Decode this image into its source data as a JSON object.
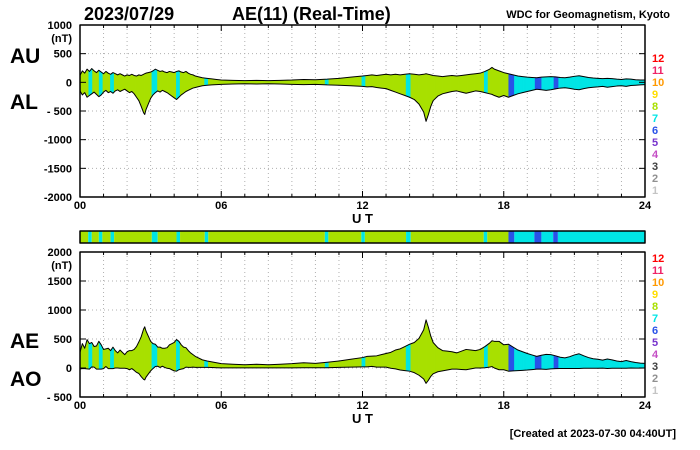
{
  "header": {
    "date": "2023/07/29",
    "title": "AE(11) (Real-Time)",
    "credit": "WDC for Geomagnetism, Kyoto"
  },
  "footer": {
    "created": "[Created at 2023-07-30 04:40UT]"
  },
  "panels": {
    "top": {
      "left_labels": [
        "AU",
        "AL"
      ],
      "xlabel": "U T",
      "unit": "(nT)"
    },
    "bottom": {
      "left_labels": [
        "AE",
        "AO"
      ],
      "xlabel": "U T",
      "unit": "(nT)"
    }
  },
  "legend": {
    "station_numbers": [
      12,
      11,
      10,
      9,
      8,
      7,
      6,
      5,
      4,
      3,
      2,
      1
    ],
    "colors": {
      "12": "#ff0000",
      "11": "#ee2266",
      "10": "#ff9900",
      "9": "#ffdd00",
      "8": "#a8e000",
      "7": "#00e5e5",
      "6": "#2952e8",
      "5": "#7733cc",
      "4": "#c44ec4",
      "3": "#404040",
      "2": "#909090",
      "1": "#c4c4c4"
    }
  },
  "chart_data": [
    {
      "type": "area",
      "name": "AU-AL panel",
      "xlabel": "U T",
      "xlim": [
        0,
        24
      ],
      "xticks": [
        0,
        6,
        12,
        18,
        24
      ],
      "xtick_labels": [
        "00",
        "06",
        "12",
        "18",
        "24"
      ],
      "ylim": [
        -2000,
        1000
      ],
      "yticks": [
        1000,
        500,
        0,
        -500,
        -1000,
        -1500,
        -2000
      ],
      "ytick_labels": [
        "1000",
        "500",
        "0",
        "- 500",
        "-1000",
        "-1500",
        "-2000"
      ],
      "unit": "(nT)",
      "x": [
        0.0,
        0.1,
        0.2,
        0.3,
        0.4,
        0.5,
        0.6,
        0.7,
        0.8,
        0.9,
        1.0,
        1.1,
        1.2,
        1.3,
        1.4,
        1.5,
        1.6,
        1.7,
        1.8,
        1.9,
        2.0,
        2.1,
        2.2,
        2.3,
        2.4,
        2.5,
        2.6,
        2.7,
        2.75,
        2.8,
        2.9,
        3.0,
        3.1,
        3.2,
        3.3,
        3.4,
        3.5,
        3.6,
        3.7,
        3.8,
        3.9,
        4.0,
        4.1,
        4.2,
        4.3,
        4.4,
        4.5,
        4.6,
        4.7,
        4.8,
        4.9,
        5.0,
        5.2,
        5.4,
        5.6,
        5.8,
        6.0,
        6.5,
        7.0,
        7.5,
        8.0,
        8.5,
        9.0,
        9.5,
        10.0,
        10.5,
        11.0,
        11.5,
        12.0,
        12.2,
        12.4,
        12.6,
        12.8,
        13.0,
        13.2,
        13.4,
        13.6,
        13.8,
        14.0,
        14.2,
        14.4,
        14.6,
        14.7,
        14.8,
        14.9,
        15.0,
        15.2,
        15.4,
        15.6,
        15.8,
        16.0,
        16.2,
        16.4,
        16.6,
        16.8,
        17.0,
        17.2,
        17.4,
        17.5,
        17.6,
        17.8,
        18.0,
        18.2,
        18.4,
        18.6,
        18.8,
        19.0,
        19.2,
        19.4,
        19.6,
        19.8,
        20.0,
        20.2,
        20.4,
        20.6,
        20.8,
        21.0,
        21.2,
        21.4,
        21.6,
        21.8,
        22.0,
        22.2,
        22.4,
        22.6,
        22.8,
        23.0,
        23.2,
        23.4,
        23.6,
        23.8,
        24.0
      ],
      "series": [
        {
          "name": "AU",
          "values": [
            120,
            200,
            160,
            230,
            190,
            240,
            200,
            170,
            210,
            180,
            150,
            190,
            160,
            140,
            170,
            150,
            130,
            150,
            130,
            110,
            130,
            120,
            140,
            120,
            110,
            130,
            120,
            140,
            150,
            160,
            170,
            180,
            200,
            230,
            210,
            190,
            200,
            180,
            170,
            190,
            180,
            170,
            190,
            200,
            180,
            170,
            190,
            160,
            140,
            130,
            110,
            100,
            80,
            70,
            60,
            50,
            40,
            35,
            30,
            35,
            30,
            35,
            40,
            50,
            45,
            55,
            70,
            90,
            110,
            120,
            130,
            120,
            130,
            140,
            130,
            140,
            130,
            140,
            150,
            140,
            130,
            140,
            150,
            140,
            130,
            120,
            110,
            100,
            110,
            120,
            110,
            120,
            130,
            140,
            150,
            160,
            190,
            230,
            260,
            230,
            200,
            170,
            150,
            130,
            110,
            100,
            90,
            85,
            80,
            90,
            95,
            100,
            95,
            85,
            80,
            90,
            105,
            115,
            100,
            85,
            75,
            70,
            65,
            70,
            65,
            55,
            50,
            60,
            55,
            45,
            40,
            40
          ]
        },
        {
          "name": "AL",
          "values": [
            -150,
            -220,
            -180,
            -260,
            -230,
            -200,
            -170,
            -210,
            -250,
            -220,
            -170,
            -140,
            -180,
            -160,
            -190,
            -150,
            -130,
            -160,
            -140,
            -120,
            -150,
            -180,
            -160,
            -200,
            -260,
            -320,
            -420,
            -530,
            -560,
            -480,
            -380,
            -280,
            -220,
            -180,
            -150,
            -170,
            -140,
            -160,
            -180,
            -210,
            -240,
            -270,
            -300,
            -260,
            -220,
            -190,
            -160,
            -140,
            -120,
            -100,
            -90,
            -80,
            -60,
            -50,
            -45,
            -40,
            -35,
            -30,
            -25,
            -30,
            -25,
            -30,
            -35,
            -40,
            -35,
            -45,
            -50,
            -60,
            -70,
            -80,
            -75,
            -90,
            -100,
            -110,
            -140,
            -170,
            -200,
            -230,
            -260,
            -300,
            -380,
            -520,
            -680,
            -560,
            -420,
            -320,
            -240,
            -200,
            -180,
            -160,
            -150,
            -170,
            -190,
            -170,
            -150,
            -160,
            -180,
            -200,
            -210,
            -230,
            -260,
            -230,
            -260,
            -230,
            -200,
            -180,
            -160,
            -140,
            -120,
            -130,
            -140,
            -130,
            -115,
            -100,
            -95,
            -105,
            -120,
            -130,
            -110,
            -95,
            -85,
            -80,
            -70,
            -85,
            -75,
            -65,
            -60,
            -70,
            -55,
            -50,
            -45,
            -40
          ]
        }
      ]
    },
    {
      "type": "area",
      "name": "AE-AO panel",
      "x_shared_with_first": true,
      "xlabel": "U T",
      "xlim": [
        0,
        24
      ],
      "xticks": [
        0,
        6,
        12,
        18,
        24
      ],
      "xtick_labels": [
        "00",
        "06",
        "12",
        "18",
        "24"
      ],
      "ylim": [
        -500,
        2000
      ],
      "yticks": [
        2000,
        1500,
        1000,
        500,
        0,
        -500
      ],
      "ytick_labels": [
        "2000",
        "1500",
        "1000",
        "500",
        "0",
        "- 500"
      ],
      "unit": "(nT)",
      "series": [
        {
          "name": "AE",
          "values": [
            270,
            420,
            340,
            490,
            420,
            440,
            370,
            380,
            460,
            400,
            320,
            330,
            340,
            300,
            360,
            300,
            260,
            310,
            270,
            230,
            280,
            300,
            300,
            320,
            370,
            450,
            540,
            670,
            710,
            640,
            550,
            460,
            420,
            410,
            360,
            360,
            340,
            340,
            350,
            400,
            420,
            440,
            490,
            460,
            400,
            360,
            350,
            300,
            260,
            230,
            200,
            180,
            140,
            120,
            105,
            90,
            75,
            65,
            55,
            65,
            55,
            65,
            75,
            90,
            80,
            100,
            120,
            150,
            180,
            200,
            205,
            210,
            230,
            250,
            270,
            310,
            330,
            370,
            410,
            440,
            510,
            660,
            830,
            700,
            550,
            440,
            350,
            300,
            290,
            280,
            260,
            290,
            320,
            310,
            300,
            320,
            370,
            430,
            470,
            460,
            460,
            400,
            410,
            360,
            310,
            280,
            250,
            225,
            200,
            220,
            235,
            230,
            210,
            185,
            175,
            195,
            225,
            245,
            210,
            180,
            160,
            150,
            135,
            155,
            140,
            120,
            110,
            130,
            110,
            95,
            85,
            80
          ]
        },
        {
          "name": "AO",
          "values": [
            -15,
            -10,
            -10,
            -15,
            -20,
            20,
            15,
            -20,
            -20,
            -20,
            -10,
            25,
            -10,
            -10,
            -10,
            0,
            0,
            -5,
            -5,
            -5,
            -10,
            -30,
            -10,
            -40,
            -75,
            -95,
            -150,
            -195,
            -205,
            -160,
            -105,
            -50,
            -10,
            25,
            30,
            10,
            30,
            10,
            -5,
            -10,
            -30,
            -50,
            -55,
            -30,
            -20,
            -10,
            15,
            10,
            10,
            15,
            10,
            10,
            10,
            10,
            8,
            5,
            3,
            3,
            3,
            3,
            3,
            3,
            3,
            5,
            5,
            5,
            10,
            15,
            20,
            20,
            28,
            15,
            15,
            15,
            -5,
            -15,
            -35,
            -45,
            -55,
            -80,
            -125,
            -190,
            -265,
            -210,
            -145,
            -100,
            -65,
            -50,
            -35,
            -20,
            -20,
            -25,
            -30,
            -15,
            0,
            0,
            5,
            15,
            25,
            0,
            -30,
            -30,
            -55,
            -50,
            -45,
            -40,
            -35,
            -28,
            -20,
            -20,
            -23,
            -15,
            -10,
            -8,
            -8,
            -8,
            -8,
            -8,
            -5,
            -5,
            -5,
            -5,
            -3,
            -8,
            -5,
            -5,
            -5,
            -5,
            0,
            -3,
            -3,
            0
          ]
        }
      ]
    },
    {
      "type": "station-count-bar",
      "name": "number of stations vs time",
      "segments": [
        {
          "t0": 0.0,
          "t1": 0.35,
          "n": 8
        },
        {
          "t0": 0.35,
          "t1": 0.5,
          "n": 7
        },
        {
          "t0": 0.5,
          "t1": 0.8,
          "n": 8
        },
        {
          "t0": 0.8,
          "t1": 0.95,
          "n": 7
        },
        {
          "t0": 0.95,
          "t1": 1.3,
          "n": 8
        },
        {
          "t0": 1.3,
          "t1": 1.45,
          "n": 7
        },
        {
          "t0": 1.45,
          "t1": 3.05,
          "n": 8
        },
        {
          "t0": 3.05,
          "t1": 3.3,
          "n": 7
        },
        {
          "t0": 3.3,
          "t1": 4.1,
          "n": 8
        },
        {
          "t0": 4.1,
          "t1": 4.25,
          "n": 7
        },
        {
          "t0": 4.25,
          "t1": 5.3,
          "n": 8
        },
        {
          "t0": 5.3,
          "t1": 5.45,
          "n": 7
        },
        {
          "t0": 5.45,
          "t1": 10.4,
          "n": 8
        },
        {
          "t0": 10.4,
          "t1": 10.55,
          "n": 7
        },
        {
          "t0": 10.55,
          "t1": 11.95,
          "n": 8
        },
        {
          "t0": 11.95,
          "t1": 12.1,
          "n": 7
        },
        {
          "t0": 12.1,
          "t1": 13.85,
          "n": 8
        },
        {
          "t0": 13.85,
          "t1": 14.05,
          "n": 7
        },
        {
          "t0": 14.05,
          "t1": 17.15,
          "n": 8
        },
        {
          "t0": 17.15,
          "t1": 17.3,
          "n": 7
        },
        {
          "t0": 17.3,
          "t1": 18.2,
          "n": 8
        },
        {
          "t0": 18.2,
          "t1": 18.45,
          "n": 6
        },
        {
          "t0": 18.45,
          "t1": 19.3,
          "n": 7
        },
        {
          "t0": 19.3,
          "t1": 19.6,
          "n": 6
        },
        {
          "t0": 19.6,
          "t1": 20.1,
          "n": 7
        },
        {
          "t0": 20.1,
          "t1": 20.3,
          "n": 6
        },
        {
          "t0": 20.3,
          "t1": 24.0,
          "n": 7
        }
      ]
    }
  ]
}
